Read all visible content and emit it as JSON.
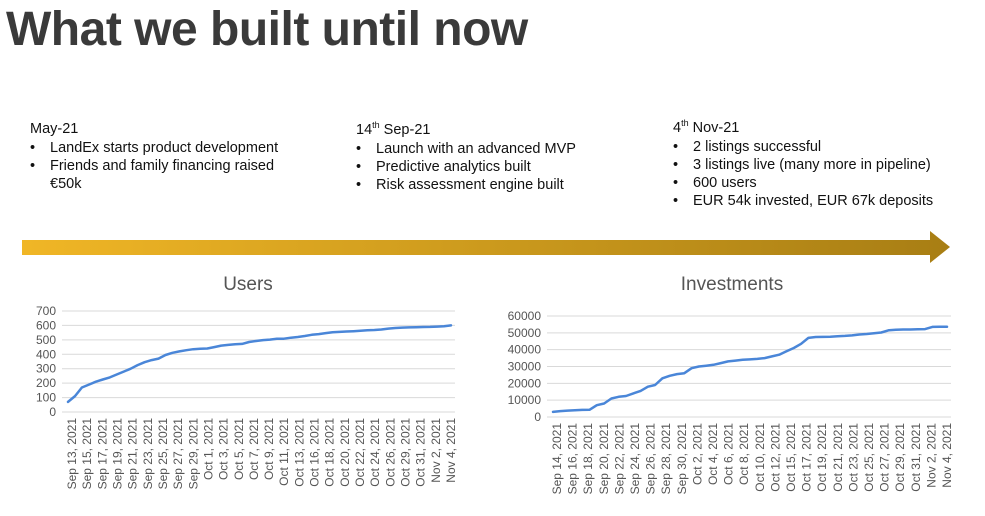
{
  "title": "What we built until now",
  "milestones": [
    {
      "date_main": "May-21",
      "date_sup": "",
      "date_rest": "",
      "items": [
        "LandEx starts product development",
        "Friends and family financing raised €50k"
      ]
    },
    {
      "date_main": "14",
      "date_sup": "th",
      "date_rest": " Sep-21",
      "items": [
        "Launch with an advanced MVP",
        "Predictive analytics built",
        "Risk assessment engine built"
      ]
    },
    {
      "date_main": "4",
      "date_sup": "th",
      "date_rest": " Nov-21",
      "items": [
        "2 listings successful",
        "3 listings live (many more in pipeline)",
        "600 users",
        "EUR 54k invested, EUR 67k deposits"
      ]
    }
  ],
  "colors": {
    "arrow_start": "#f0b626",
    "arrow_end": "#a87e14",
    "line": "#4a86d8",
    "grid": "#d9d9d9"
  },
  "chart_data": [
    {
      "type": "line",
      "title": "Users",
      "ylim": [
        0,
        700
      ],
      "yticks": [
        0,
        100,
        200,
        300,
        400,
        500,
        600,
        700
      ],
      "grid": true,
      "x_tick_labels": [
        "Sep 13, 2021",
        "Sep 15, 2021",
        "Sep 17, 2021",
        "Sep 19, 2021",
        "Sep 21, 2021",
        "Sep 23, 2021",
        "Sep 25, 2021",
        "Sep 27, 2021",
        "Sep 29, 2021",
        "Oct 1, 2021",
        "Oct 3, 2021",
        "Oct 5, 2021",
        "Oct 7, 2021",
        "Oct 9, 2021",
        "Oct 11, 2021",
        "Oct 13, 2021",
        "Oct 16, 2021",
        "Oct 18, 2021",
        "Oct 20, 2021",
        "Oct 22, 2021",
        "Oct 24, 2021",
        "Oct 26, 2021",
        "Oct 29, 2021",
        "Oct 31, 2021",
        "Nov 2, 2021",
        "Nov 4, 2021"
      ],
      "values": [
        70,
        110,
        170,
        190,
        210,
        225,
        240,
        260,
        280,
        300,
        325,
        345,
        360,
        370,
        395,
        410,
        420,
        428,
        435,
        438,
        440,
        450,
        460,
        465,
        470,
        472,
        485,
        492,
        498,
        502,
        507,
        508,
        515,
        520,
        527,
        535,
        540,
        547,
        553,
        555,
        558,
        560,
        563,
        566,
        568,
        572,
        578,
        582,
        585,
        586,
        588,
        589,
        590,
        592,
        595,
        600
      ]
    },
    {
      "type": "line",
      "title": "Investments",
      "ylim": [
        0,
        60000
      ],
      "yticks": [
        0,
        10000,
        20000,
        30000,
        40000,
        50000,
        60000
      ],
      "grid": true,
      "x_tick_labels": [
        "Sep 14, 2021",
        "Sep 16, 2021",
        "Sep 18, 2021",
        "Sep 20, 2021",
        "Sep 22, 2021",
        "Sep 24, 2021",
        "Sep 26, 2021",
        "Sep 28, 2021",
        "Sep 30, 2021",
        "Oct 2, 2021",
        "Oct 4, 2021",
        "Oct 6, 2021",
        "Oct 8, 2021",
        "Oct 10, 2021",
        "Oct 12, 2021",
        "Oct 15, 2021",
        "Oct 17, 2021",
        "Oct 19, 2021",
        "Oct 21, 2021",
        "Oct 23, 2021",
        "Oct 25, 2021",
        "Oct 27, 2021",
        "Oct 29, 2021",
        "Oct 31, 2021",
        "Nov 2, 2021",
        "Nov 4, 2021"
      ],
      "values": [
        3000,
        3500,
        3800,
        4000,
        4200,
        4300,
        7000,
        8000,
        11000,
        12000,
        12500,
        14000,
        15500,
        18000,
        19000,
        23000,
        24500,
        25500,
        26000,
        29000,
        30000,
        30500,
        31000,
        32000,
        33000,
        33500,
        34000,
        34200,
        34500,
        35000,
        36000,
        37000,
        39000,
        41000,
        43500,
        47000,
        47500,
        47600,
        47700,
        48000,
        48200,
        48500,
        49000,
        49300,
        49800,
        50200,
        51500,
        51800,
        52000,
        52000,
        52100,
        52200,
        53500,
        53600,
        53600
      ]
    }
  ]
}
